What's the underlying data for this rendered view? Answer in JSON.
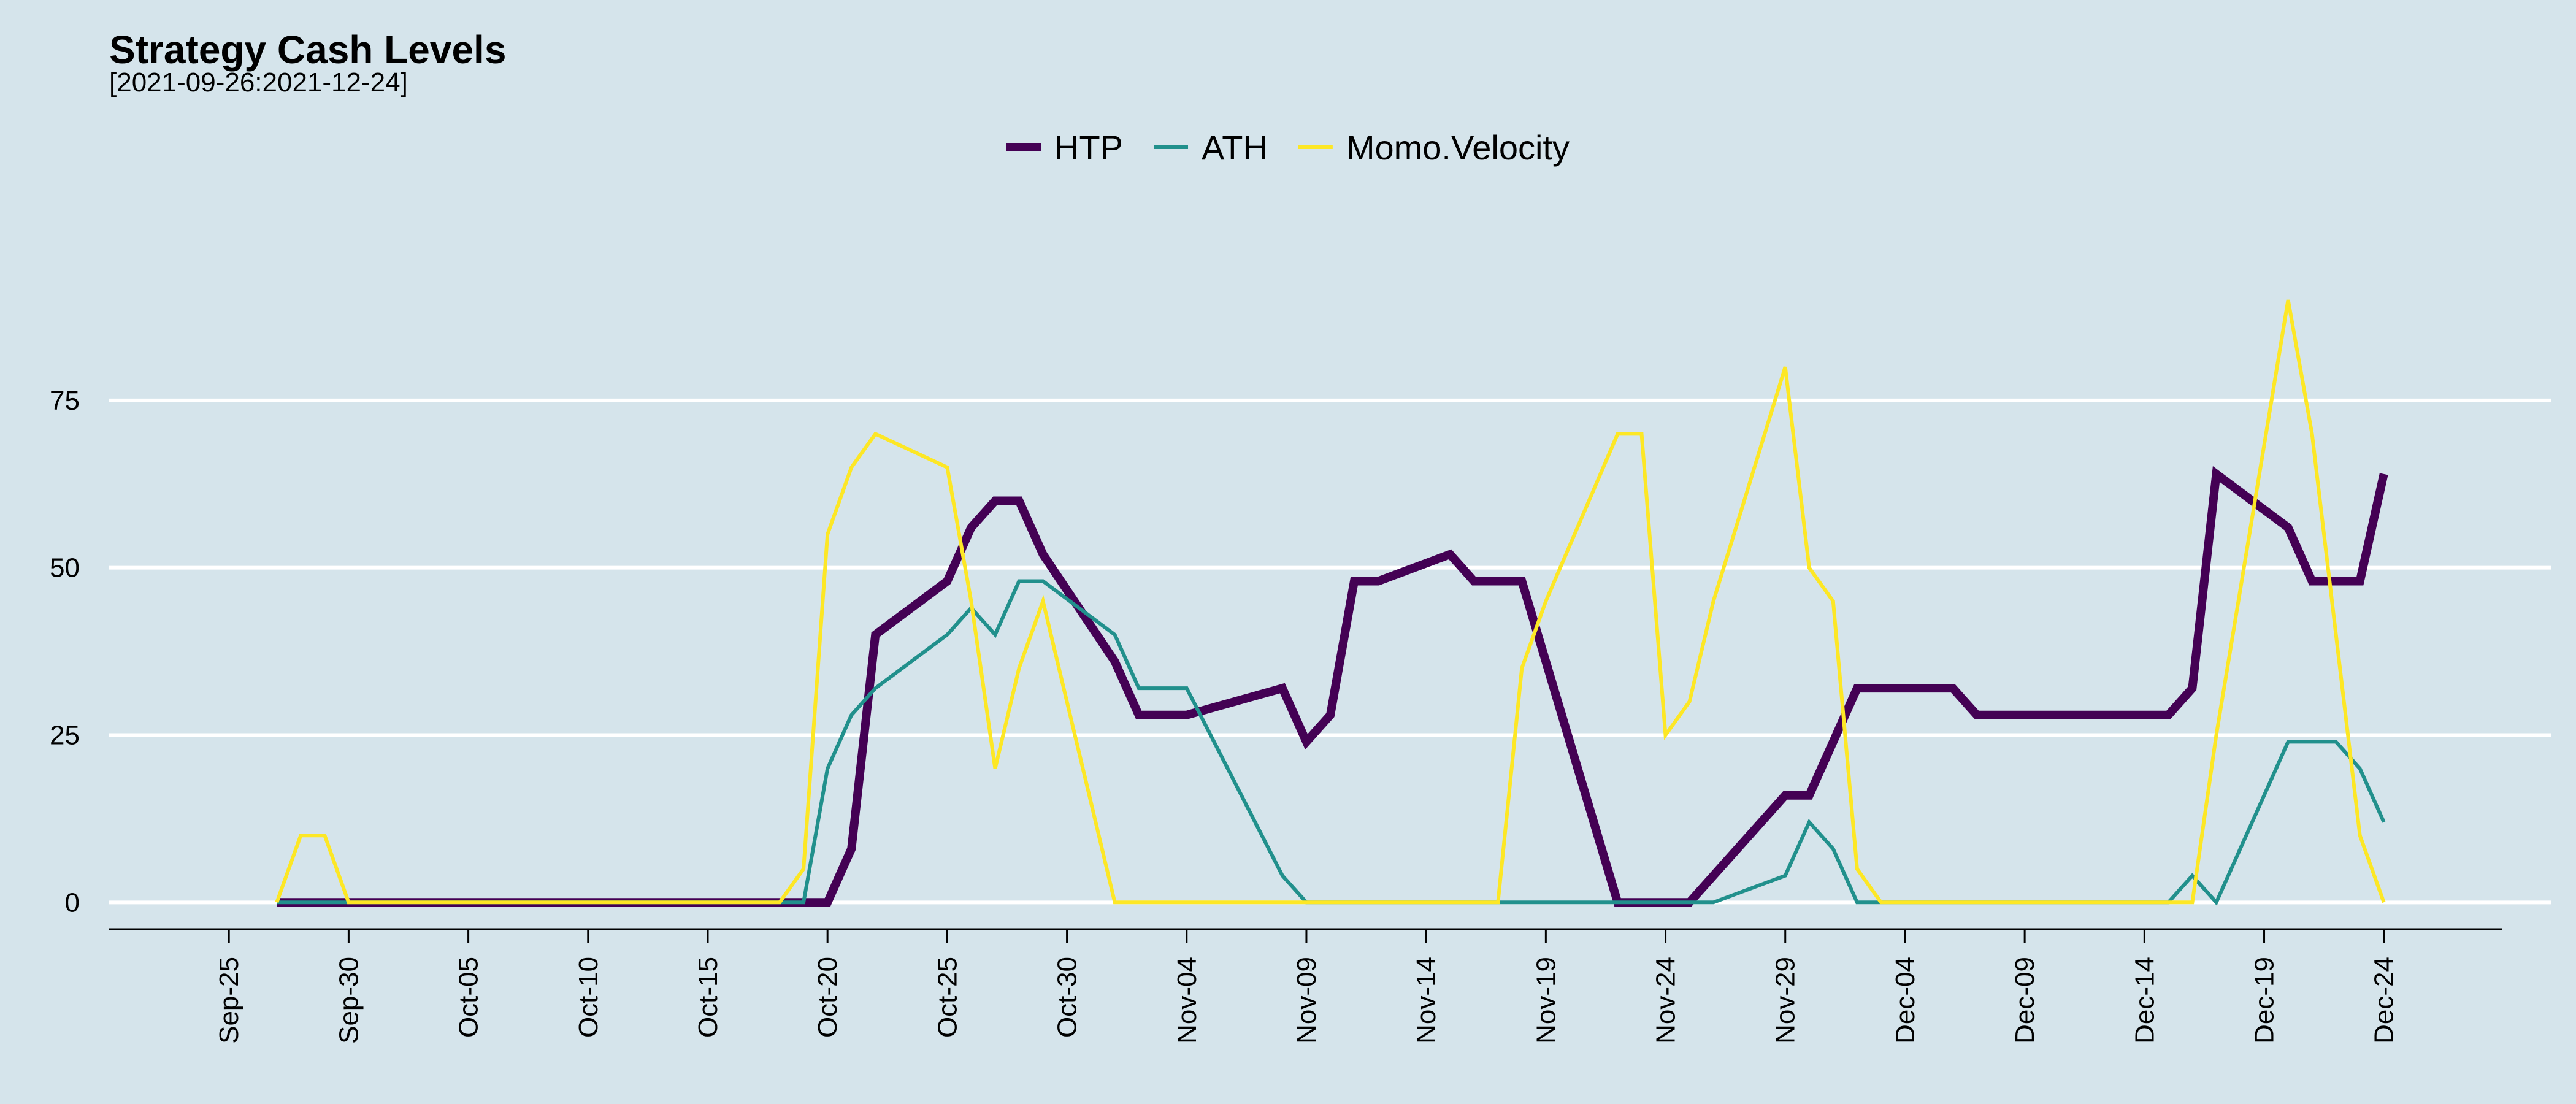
{
  "chart_data": {
    "type": "line",
    "title": "Strategy Cash Levels",
    "subtitle": "[2021-09-26:2021-12-24]",
    "xlabel": "",
    "ylabel": "",
    "x_range": [
      "2021-09-20",
      "2021-12-31"
    ],
    "ylim": [
      -4,
      100
    ],
    "y_ticks": [
      0,
      25,
      50,
      75
    ],
    "x_ticks": [
      {
        "date": "2021-09-25",
        "label": "Sep-25"
      },
      {
        "date": "2021-09-30",
        "label": "Sep-30"
      },
      {
        "date": "2021-10-05",
        "label": "Oct-05"
      },
      {
        "date": "2021-10-10",
        "label": "Oct-10"
      },
      {
        "date": "2021-10-15",
        "label": "Oct-15"
      },
      {
        "date": "2021-10-20",
        "label": "Oct-20"
      },
      {
        "date": "2021-10-25",
        "label": "Oct-25"
      },
      {
        "date": "2021-10-30",
        "label": "Oct-30"
      },
      {
        "date": "2021-11-04",
        "label": "Nov-04"
      },
      {
        "date": "2021-11-09",
        "label": "Nov-09"
      },
      {
        "date": "2021-11-14",
        "label": "Nov-14"
      },
      {
        "date": "2021-11-19",
        "label": "Nov-19"
      },
      {
        "date": "2021-11-24",
        "label": "Nov-24"
      },
      {
        "date": "2021-11-29",
        "label": "Nov-29"
      },
      {
        "date": "2021-12-04",
        "label": "Dec-04"
      },
      {
        "date": "2021-12-09",
        "label": "Dec-09"
      },
      {
        "date": "2021-12-14",
        "label": "Dec-14"
      },
      {
        "date": "2021-12-19",
        "label": "Dec-19"
      },
      {
        "date": "2021-12-24",
        "label": "Dec-24"
      }
    ],
    "grid": "horizontal",
    "legend_position": "top-center",
    "series": [
      {
        "name": "HTP",
        "color": "#440154",
        "width": 14,
        "points": [
          [
            "2021-09-27",
            0
          ],
          [
            "2021-10-19",
            0
          ],
          [
            "2021-10-20",
            0
          ],
          [
            "2021-10-21",
            8
          ],
          [
            "2021-10-22",
            40
          ],
          [
            "2021-10-25",
            48
          ],
          [
            "2021-10-26",
            56
          ],
          [
            "2021-10-27",
            60
          ],
          [
            "2021-10-28",
            60
          ],
          [
            "2021-10-29",
            52
          ],
          [
            "2021-11-01",
            36
          ],
          [
            "2021-11-02",
            28
          ],
          [
            "2021-11-04",
            28
          ],
          [
            "2021-11-08",
            32
          ],
          [
            "2021-11-09",
            24
          ],
          [
            "2021-11-10",
            28
          ],
          [
            "2021-11-11",
            48
          ],
          [
            "2021-11-12",
            48
          ],
          [
            "2021-11-15",
            52
          ],
          [
            "2021-11-16",
            48
          ],
          [
            "2021-11-18",
            48
          ],
          [
            "2021-11-22",
            0
          ],
          [
            "2021-11-25",
            0
          ],
          [
            "2021-11-29",
            16
          ],
          [
            "2021-11-30",
            16
          ],
          [
            "2021-12-02",
            32
          ],
          [
            "2021-12-06",
            32
          ],
          [
            "2021-12-07",
            28
          ],
          [
            "2021-12-15",
            28
          ],
          [
            "2021-12-16",
            32
          ],
          [
            "2021-12-17",
            64
          ],
          [
            "2021-12-20",
            56
          ],
          [
            "2021-12-21",
            48
          ],
          [
            "2021-12-23",
            48
          ],
          [
            "2021-12-24",
            64
          ]
        ]
      },
      {
        "name": "ATH",
        "color": "#21908c",
        "width": 6,
        "points": [
          [
            "2021-09-27",
            0
          ],
          [
            "2021-10-19",
            0
          ],
          [
            "2021-10-20",
            20
          ],
          [
            "2021-10-21",
            28
          ],
          [
            "2021-10-22",
            32
          ],
          [
            "2021-10-25",
            40
          ],
          [
            "2021-10-26",
            44
          ],
          [
            "2021-10-27",
            40
          ],
          [
            "2021-10-28",
            48
          ],
          [
            "2021-10-29",
            48
          ],
          [
            "2021-11-01",
            40
          ],
          [
            "2021-11-02",
            32
          ],
          [
            "2021-11-04",
            32
          ],
          [
            "2021-11-08",
            4
          ],
          [
            "2021-11-09",
            0
          ],
          [
            "2021-11-26",
            0
          ],
          [
            "2021-11-29",
            4
          ],
          [
            "2021-11-30",
            12
          ],
          [
            "2021-12-01",
            8
          ],
          [
            "2021-12-02",
            0
          ],
          [
            "2021-12-15",
            0
          ],
          [
            "2021-12-16",
            4
          ],
          [
            "2021-12-17",
            0
          ],
          [
            "2021-12-20",
            24
          ],
          [
            "2021-12-22",
            24
          ],
          [
            "2021-12-23",
            20
          ],
          [
            "2021-12-24",
            12
          ]
        ]
      },
      {
        "name": "Momo.Velocity",
        "color": "#fde725",
        "width": 6,
        "points": [
          [
            "2021-09-27",
            0
          ],
          [
            "2021-09-28",
            10
          ],
          [
            "2021-09-29",
            10
          ],
          [
            "2021-09-30",
            0
          ],
          [
            "2021-10-18",
            0
          ],
          [
            "2021-10-19",
            5
          ],
          [
            "2021-10-20",
            55
          ],
          [
            "2021-10-21",
            65
          ],
          [
            "2021-10-22",
            70
          ],
          [
            "2021-10-25",
            65
          ],
          [
            "2021-10-26",
            45
          ],
          [
            "2021-10-27",
            20
          ],
          [
            "2021-10-28",
            35
          ],
          [
            "2021-10-29",
            45
          ],
          [
            "2021-11-01",
            0
          ],
          [
            "2021-11-17",
            0
          ],
          [
            "2021-11-18",
            35
          ],
          [
            "2021-11-19",
            45
          ],
          [
            "2021-11-22",
            70
          ],
          [
            "2021-11-23",
            70
          ],
          [
            "2021-11-24",
            25
          ],
          [
            "2021-11-25",
            30
          ],
          [
            "2021-11-26",
            45
          ],
          [
            "2021-11-29",
            80
          ],
          [
            "2021-11-30",
            50
          ],
          [
            "2021-12-01",
            45
          ],
          [
            "2021-12-02",
            5
          ],
          [
            "2021-12-03",
            0
          ],
          [
            "2021-12-16",
            0
          ],
          [
            "2021-12-17",
            25
          ],
          [
            "2021-12-20",
            90
          ],
          [
            "2021-12-21",
            70
          ],
          [
            "2021-12-23",
            10
          ],
          [
            "2021-12-24",
            0
          ]
        ]
      }
    ]
  }
}
